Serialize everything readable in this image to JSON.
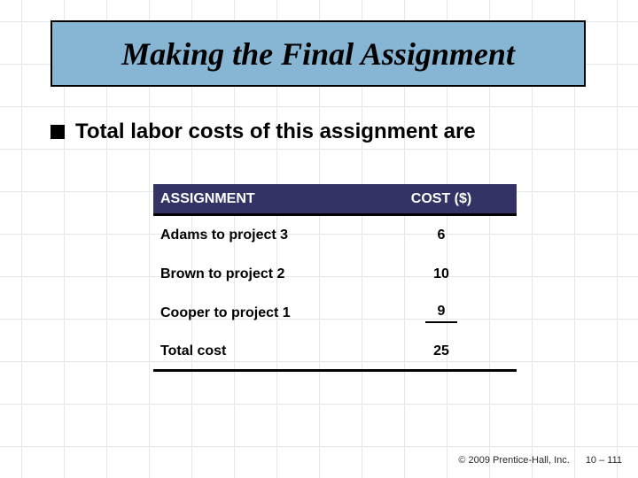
{
  "title": "Making the Final Assignment",
  "bullet_text": "Total labor costs of this assignment are",
  "table": {
    "header": {
      "assignment": "ASSIGNMENT",
      "cost": "COST ($)"
    },
    "rows": [
      {
        "assignment": "Adams to project 3",
        "cost": "6"
      },
      {
        "assignment": "Brown to project 2",
        "cost": "10"
      },
      {
        "assignment": "Cooper to project 1",
        "cost": "9"
      }
    ],
    "total": {
      "label": "Total cost",
      "value": "25"
    }
  },
  "footer": {
    "copyright": "© 2009 Prentice-Hall, Inc.",
    "page": "10 – 111"
  },
  "colors": {
    "title_bg": "#86b6d3",
    "header_bg": "#333366",
    "grid_line": "#d0d6dc",
    "text": "#000000",
    "background": "#ffffff"
  }
}
